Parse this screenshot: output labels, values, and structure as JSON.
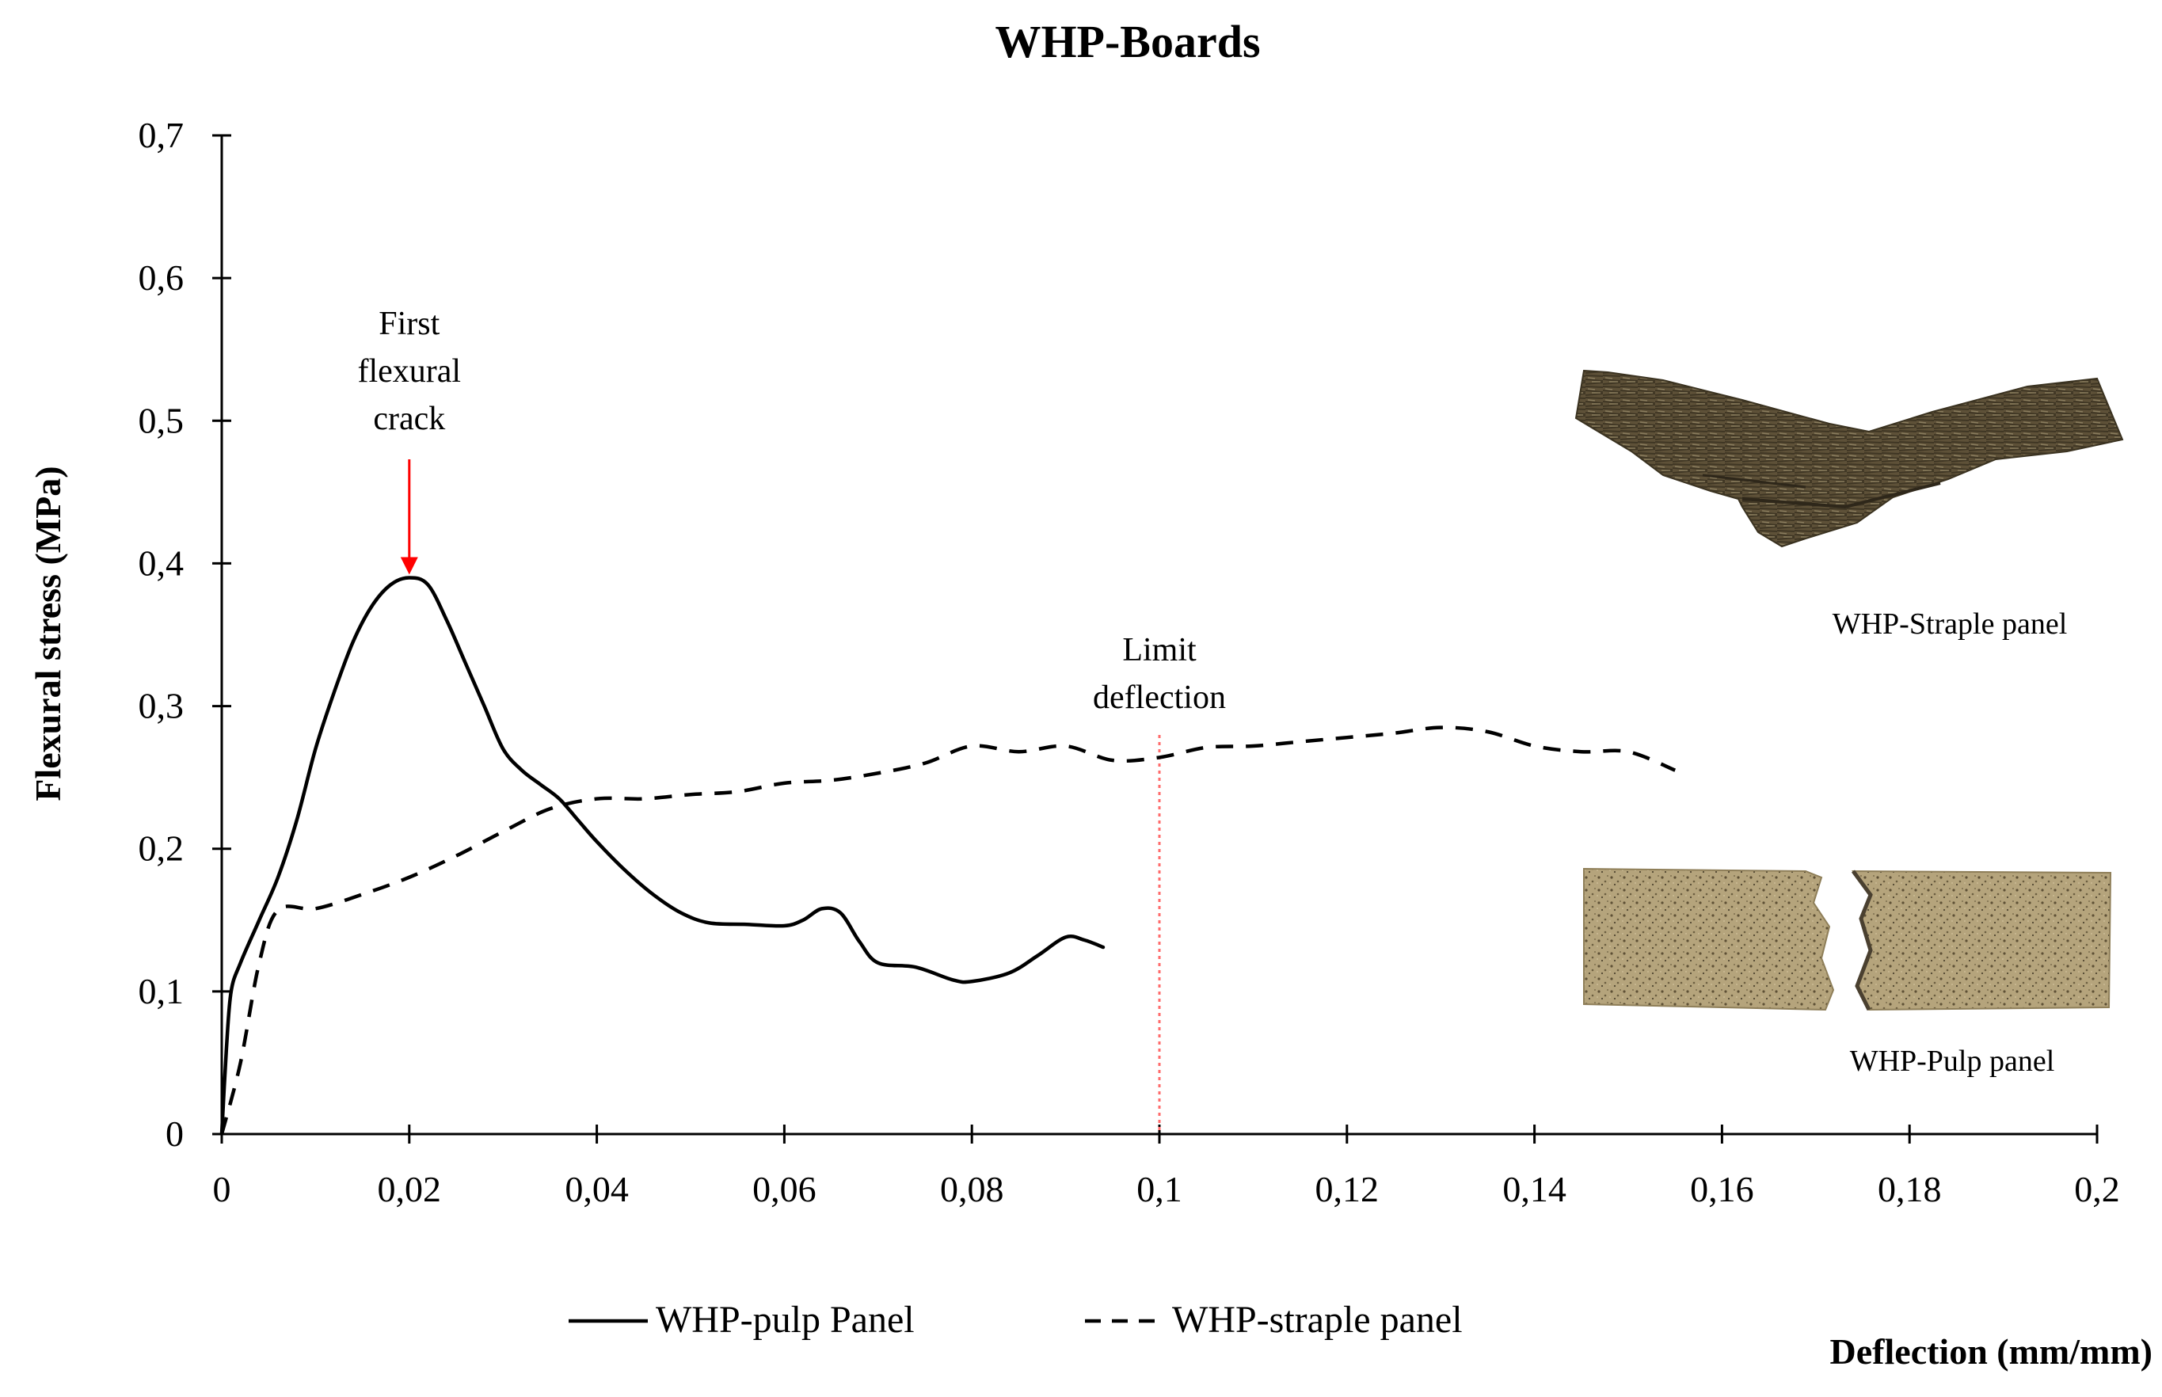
{
  "chart_data": {
    "type": "line",
    "title": "WHP-Boards",
    "xlabel": "Deflection (mm/mm)",
    "ylabel": "Flexural stress (MPa)",
    "xlim": [
      0,
      0.2
    ],
    "ylim": [
      0,
      0.7
    ],
    "x_ticks": [
      0,
      0.02,
      0.04,
      0.06,
      0.08,
      0.1,
      0.12,
      0.14,
      0.16,
      0.18,
      0.2
    ],
    "x_tick_labels": [
      "0",
      "0,02",
      "0,04",
      "0,06",
      "0,08",
      "0,1",
      "0,12",
      "0,14",
      "0,16",
      "0,18",
      "0,2"
    ],
    "y_ticks": [
      0,
      0.1,
      0.2,
      0.3,
      0.4,
      0.5,
      0.6,
      0.7
    ],
    "y_tick_labels": [
      "0",
      "0,1",
      "0,2",
      "0,3",
      "0,4",
      "0,5",
      "0,6",
      "0,7"
    ],
    "grid": false,
    "legend_position": "bottom",
    "series": [
      {
        "name": "WHP-pulp Panel",
        "style": "solid",
        "color": "#000000",
        "points": [
          [
            0,
            0
          ],
          [
            0.0005,
            0.06
          ],
          [
            0.001,
            0.1
          ],
          [
            0.002,
            0.12
          ],
          [
            0.004,
            0.15
          ],
          [
            0.006,
            0.18
          ],
          [
            0.008,
            0.22
          ],
          [
            0.01,
            0.27
          ],
          [
            0.012,
            0.31
          ],
          [
            0.014,
            0.345
          ],
          [
            0.016,
            0.37
          ],
          [
            0.018,
            0.385
          ],
          [
            0.02,
            0.39
          ],
          [
            0.022,
            0.385
          ],
          [
            0.024,
            0.36
          ],
          [
            0.026,
            0.33
          ],
          [
            0.028,
            0.3
          ],
          [
            0.03,
            0.27
          ],
          [
            0.032,
            0.255
          ],
          [
            0.034,
            0.245
          ],
          [
            0.036,
            0.235
          ],
          [
            0.038,
            0.22
          ],
          [
            0.04,
            0.205
          ],
          [
            0.043,
            0.185
          ],
          [
            0.046,
            0.168
          ],
          [
            0.049,
            0.155
          ],
          [
            0.052,
            0.148
          ],
          [
            0.056,
            0.147
          ],
          [
            0.06,
            0.146
          ],
          [
            0.062,
            0.15
          ],
          [
            0.064,
            0.158
          ],
          [
            0.066,
            0.155
          ],
          [
            0.068,
            0.135
          ],
          [
            0.07,
            0.12
          ],
          [
            0.074,
            0.117
          ],
          [
            0.078,
            0.108
          ],
          [
            0.08,
            0.107
          ],
          [
            0.084,
            0.113
          ],
          [
            0.087,
            0.125
          ],
          [
            0.09,
            0.138
          ],
          [
            0.092,
            0.136
          ],
          [
            0.094,
            0.131
          ]
        ]
      },
      {
        "name": "WHP-straple panel",
        "style": "dashed",
        "color": "#000000",
        "points": [
          [
            0,
            0
          ],
          [
            0.002,
            0.05
          ],
          [
            0.004,
            0.12
          ],
          [
            0.006,
            0.157
          ],
          [
            0.01,
            0.158
          ],
          [
            0.015,
            0.168
          ],
          [
            0.02,
            0.18
          ],
          [
            0.025,
            0.195
          ],
          [
            0.03,
            0.212
          ],
          [
            0.035,
            0.228
          ],
          [
            0.04,
            0.235
          ],
          [
            0.045,
            0.235
          ],
          [
            0.05,
            0.238
          ],
          [
            0.055,
            0.24
          ],
          [
            0.06,
            0.246
          ],
          [
            0.065,
            0.248
          ],
          [
            0.07,
            0.253
          ],
          [
            0.075,
            0.26
          ],
          [
            0.08,
            0.272
          ],
          [
            0.085,
            0.268
          ],
          [
            0.09,
            0.272
          ],
          [
            0.095,
            0.262
          ],
          [
            0.1,
            0.264
          ],
          [
            0.105,
            0.271
          ],
          [
            0.11,
            0.272
          ],
          [
            0.115,
            0.275
          ],
          [
            0.12,
            0.278
          ],
          [
            0.125,
            0.281
          ],
          [
            0.13,
            0.285
          ],
          [
            0.135,
            0.282
          ],
          [
            0.14,
            0.272
          ],
          [
            0.145,
            0.268
          ],
          [
            0.15,
            0.268
          ],
          [
            0.155,
            0.255
          ]
        ]
      }
    ],
    "annotations": [
      {
        "text": "First\nflexural\ncrack",
        "x": 0.02,
        "y": 0.39,
        "arrow": true,
        "color": "#ff0000"
      },
      {
        "text": "Limit\ndeflection",
        "x": 0.1,
        "line": "vertical-dotted",
        "color": "#ff6b6b"
      }
    ],
    "images": [
      {
        "name": "straple-panel-photo",
        "caption": "WHP-Straple panel"
      },
      {
        "name": "pulp-panel-photo",
        "caption": "WHP-Pulp panel"
      }
    ]
  }
}
